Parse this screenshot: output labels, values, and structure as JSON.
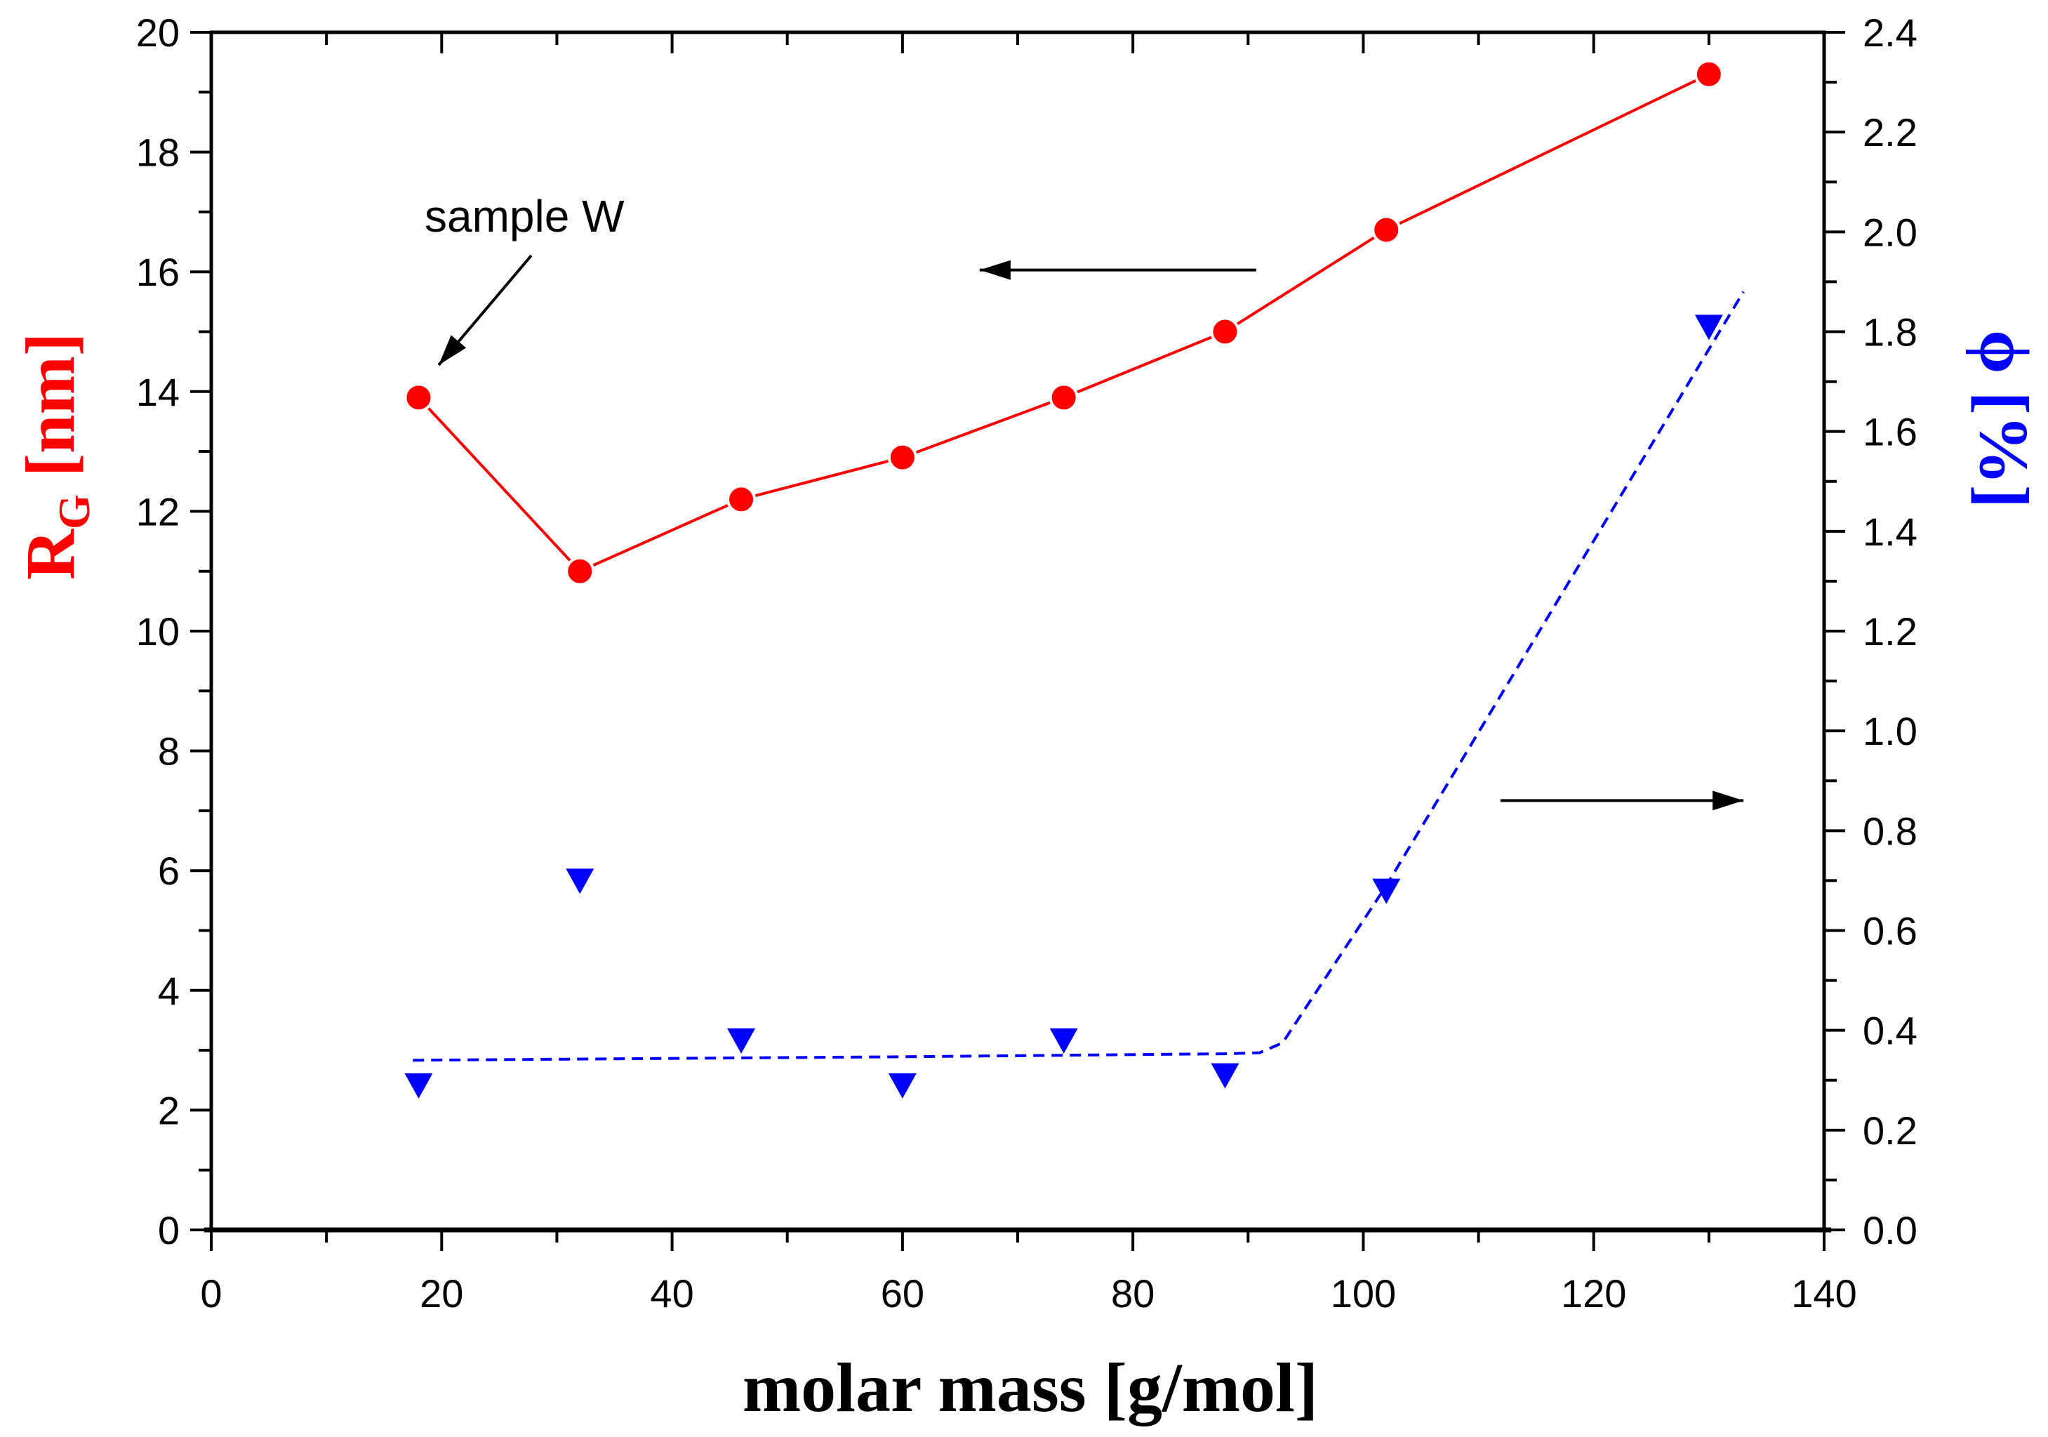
{
  "chart_data": {
    "type": "line",
    "xlabel": "molar mass [g/mol]",
    "ylabel_left": {
      "main": "R",
      "sub": "G",
      "unit": " [nm]"
    },
    "ylabel_right": "ϕ [%]",
    "xlim": [
      0,
      140
    ],
    "ylim_left": [
      0,
      20
    ],
    "ylim_right": [
      0,
      2.4
    ],
    "x_ticks": [
      "0",
      "20",
      "40",
      "60",
      "80",
      "100",
      "120",
      "140"
    ],
    "y_left_ticks": [
      "0",
      "2",
      "4",
      "6",
      "8",
      "10",
      "12",
      "14",
      "16",
      "18",
      "20"
    ],
    "y_right_ticks": [
      "0.0",
      "0.2",
      "0.4",
      "0.6",
      "0.8",
      "1.0",
      "1.2",
      "1.4",
      "1.6",
      "1.8",
      "2.0",
      "2.2",
      "2.4"
    ],
    "grid": false,
    "series": [
      {
        "name": "R_G",
        "axis": "left",
        "marker": "circle",
        "line": "solid",
        "color": "#ff0000",
        "x": [
          18,
          32,
          46,
          60,
          74,
          88,
          102,
          130
        ],
        "y": [
          13.9,
          11.0,
          12.2,
          12.9,
          13.9,
          15.0,
          16.7,
          19.3
        ]
      },
      {
        "name": "phi",
        "axis": "right",
        "marker": "triangle-down",
        "line": "none",
        "color": "#0000ff",
        "x": [
          18,
          32,
          46,
          60,
          74,
          88,
          102,
          130
        ],
        "y": [
          0.29,
          0.7,
          0.38,
          0.29,
          0.38,
          0.31,
          0.68,
          1.81
        ]
      },
      {
        "name": "phi fit",
        "axis": "right",
        "marker": "none",
        "line": "dashed",
        "color": "#0000ff",
        "x": [
          17.5,
          60,
          88,
          91,
          93,
          102,
          133
        ],
        "y": [
          0.34,
          0.347,
          0.353,
          0.355,
          0.375,
          0.69,
          1.88
        ]
      }
    ],
    "annotations": [
      {
        "text": "sample W"
      }
    ]
  }
}
